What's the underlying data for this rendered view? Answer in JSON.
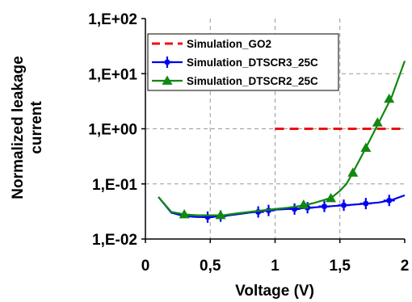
{
  "chart_data": {
    "type": "line",
    "xlabel": "Voltage (V)",
    "ylabel_lines": [
      "Normalized leakage",
      "current"
    ],
    "x_ticks": [
      {
        "value": 0,
        "label": "0"
      },
      {
        "value": 0.5,
        "label": "0,5"
      },
      {
        "value": 1,
        "label": "1"
      },
      {
        "value": 1.5,
        "label": "1,5"
      },
      {
        "value": 2,
        "label": "2"
      }
    ],
    "y_ticks": [
      {
        "value": 0.01,
        "label": "1,E-02"
      },
      {
        "value": 0.1,
        "label": "1,E-01"
      },
      {
        "value": 1,
        "label": "1,E+00"
      },
      {
        "value": 10,
        "label": "1,E+01"
      },
      {
        "value": 100,
        "label": "1,E+02"
      }
    ],
    "xlim": [
      0,
      2
    ],
    "ylim": [
      0.01,
      100
    ],
    "y_scale": "log",
    "grid": "dashed",
    "legend_position": "top-left",
    "series": [
      {
        "name": "Simulation_GO2",
        "color": "#ee1111",
        "style": "dashed",
        "marker": "none",
        "points": [
          [
            1.0,
            1.0
          ],
          [
            2.0,
            1.0
          ]
        ],
        "markers": []
      },
      {
        "name": "Simulation_DTSCR3_25C",
        "color": "#0000ee",
        "style": "solid",
        "marker": "star",
        "points": [
          [
            0.1,
            0.058
          ],
          [
            0.2,
            0.03
          ],
          [
            0.3,
            0.026
          ],
          [
            0.4,
            0.025
          ],
          [
            0.5,
            0.025
          ],
          [
            0.6,
            0.026
          ],
          [
            0.7,
            0.028
          ],
          [
            0.8,
            0.03
          ],
          [
            0.9,
            0.032
          ],
          [
            1.0,
            0.034
          ],
          [
            1.2,
            0.036
          ],
          [
            1.4,
            0.039
          ],
          [
            1.6,
            0.042
          ],
          [
            1.8,
            0.046
          ],
          [
            1.9,
            0.051
          ],
          [
            2.0,
            0.062
          ]
        ],
        "markers": [
          [
            0.48,
            0.025
          ],
          [
            0.58,
            0.026
          ],
          [
            0.87,
            0.031
          ],
          [
            0.95,
            0.033
          ],
          [
            1.15,
            0.035
          ],
          [
            1.25,
            0.037
          ],
          [
            1.38,
            0.039
          ],
          [
            1.53,
            0.041
          ],
          [
            1.7,
            0.044
          ],
          [
            1.88,
            0.05
          ]
        ]
      },
      {
        "name": "Simulation_DTSCR2_25C",
        "color": "#118811",
        "style": "solid",
        "marker": "triangle",
        "points": [
          [
            0.1,
            0.058
          ],
          [
            0.2,
            0.031
          ],
          [
            0.3,
            0.028
          ],
          [
            0.4,
            0.027
          ],
          [
            0.5,
            0.027
          ],
          [
            0.6,
            0.027
          ],
          [
            0.7,
            0.029
          ],
          [
            0.8,
            0.031
          ],
          [
            0.9,
            0.033
          ],
          [
            1.0,
            0.035
          ],
          [
            1.1,
            0.037
          ],
          [
            1.2,
            0.04
          ],
          [
            1.3,
            0.045
          ],
          [
            1.4,
            0.053
          ],
          [
            1.45,
            0.06
          ],
          [
            1.5,
            0.075
          ],
          [
            1.55,
            0.1
          ],
          [
            1.6,
            0.16
          ],
          [
            1.7,
            0.45
          ],
          [
            1.8,
            1.3
          ],
          [
            1.9,
            3.8
          ],
          [
            2.0,
            17
          ]
        ],
        "markers": [
          [
            0.3,
            0.028
          ],
          [
            0.58,
            0.027
          ],
          [
            1.22,
            0.042
          ],
          [
            1.43,
            0.055
          ],
          [
            1.6,
            0.16
          ],
          [
            1.7,
            0.45
          ],
          [
            1.79,
            1.3
          ],
          [
            1.88,
            3.5
          ]
        ]
      }
    ]
  }
}
